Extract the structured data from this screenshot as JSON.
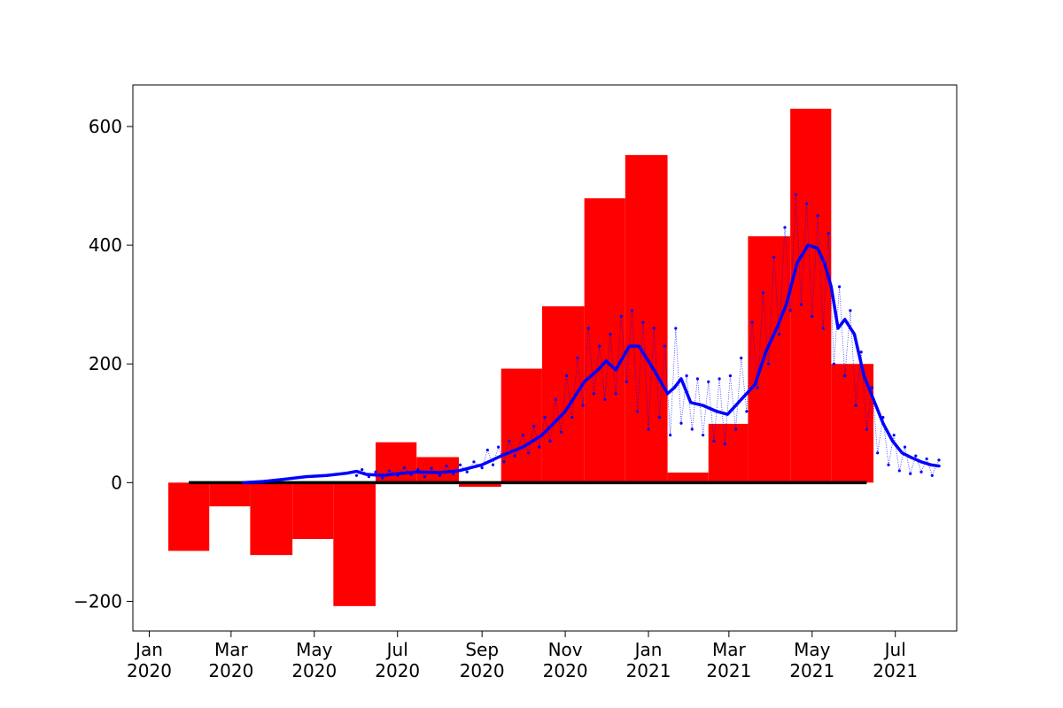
{
  "chart_data": {
    "type": "bar",
    "title": "",
    "xlabel": "",
    "ylabel": "",
    "xlim": [
      "2019-12-20",
      "2021-08-15"
    ],
    "ylim": [
      -250,
      670
    ],
    "grid": false,
    "x_ticks": [
      {
        "date": "2020-01-01",
        "label": [
          "Jan",
          "2020"
        ]
      },
      {
        "date": "2020-03-01",
        "label": [
          "Mar",
          "2020"
        ]
      },
      {
        "date": "2020-05-01",
        "label": [
          "May",
          "2020"
        ]
      },
      {
        "date": "2020-07-01",
        "label": [
          "Jul",
          "2020"
        ]
      },
      {
        "date": "2020-09-01",
        "label": [
          "Sep",
          "2020"
        ]
      },
      {
        "date": "2020-11-01",
        "label": [
          "Nov",
          "2020"
        ]
      },
      {
        "date": "2021-01-01",
        "label": [
          "Jan",
          "2021"
        ]
      },
      {
        "date": "2021-03-01",
        "label": [
          "Mar",
          "2021"
        ]
      },
      {
        "date": "2021-05-01",
        "label": [
          "May",
          "2021"
        ]
      },
      {
        "date": "2021-07-01",
        "label": [
          "Jul",
          "2021"
        ]
      }
    ],
    "y_ticks": [
      {
        "value": -200,
        "label": "−200"
      },
      {
        "value": 0,
        "label": "0"
      },
      {
        "value": 200,
        "label": "200"
      },
      {
        "value": 400,
        "label": "400"
      },
      {
        "value": 600,
        "label": "600"
      }
    ],
    "monthly_bars": {
      "color": "#ff0000",
      "bars": [
        {
          "start": "2020-01-15",
          "end": "2020-02-14",
          "value": -115
        },
        {
          "start": "2020-02-14",
          "end": "2020-03-15",
          "value": -40
        },
        {
          "start": "2020-03-15",
          "end": "2020-04-15",
          "value": -122
        },
        {
          "start": "2020-04-15",
          "end": "2020-05-15",
          "value": -95
        },
        {
          "start": "2020-05-15",
          "end": "2020-06-15",
          "value": -208
        },
        {
          "start": "2020-06-15",
          "end": "2020-07-15",
          "value": 68
        },
        {
          "start": "2020-07-15",
          "end": "2020-08-15",
          "value": 43
        },
        {
          "start": "2020-08-15",
          "end": "2020-09-15",
          "value": -7
        },
        {
          "start": "2020-09-15",
          "end": "2020-10-15",
          "value": 192
        },
        {
          "start": "2020-10-15",
          "end": "2020-11-15",
          "value": 297
        },
        {
          "start": "2020-11-15",
          "end": "2020-12-15",
          "value": 479
        },
        {
          "start": "2020-12-15",
          "end": "2021-01-15",
          "value": 552
        },
        {
          "start": "2021-01-15",
          "end": "2021-02-14",
          "value": 17
        },
        {
          "start": "2021-02-14",
          "end": "2021-03-15",
          "value": 99
        },
        {
          "start": "2021-03-15",
          "end": "2021-04-15",
          "value": 415
        },
        {
          "start": "2021-04-15",
          "end": "2021-05-15",
          "value": 630
        },
        {
          "start": "2021-05-15",
          "end": "2021-06-15",
          "value": 200
        }
      ]
    },
    "baseline": {
      "start": "2020-01-30",
      "end": "2021-06-10",
      "value": 0,
      "color": "#000000"
    },
    "series": [
      {
        "style": "thick-line",
        "color": "#0000ff",
        "points": [
          [
            "2020-03-10",
            0
          ],
          [
            "2020-03-25",
            2
          ],
          [
            "2020-04-10",
            6
          ],
          [
            "2020-04-25",
            10
          ],
          [
            "2020-05-10",
            12
          ],
          [
            "2020-05-25",
            16
          ],
          [
            "2020-06-01",
            19
          ],
          [
            "2020-06-08",
            14
          ],
          [
            "2020-06-20",
            12
          ],
          [
            "2020-07-01",
            15
          ],
          [
            "2020-07-15",
            18
          ],
          [
            "2020-08-01",
            17
          ],
          [
            "2020-08-15",
            20
          ],
          [
            "2020-09-01",
            30
          ],
          [
            "2020-09-15",
            45
          ],
          [
            "2020-10-01",
            60
          ],
          [
            "2020-10-15",
            80
          ],
          [
            "2020-11-01",
            120
          ],
          [
            "2020-11-15",
            170
          ],
          [
            "2020-11-25",
            190
          ],
          [
            "2020-12-01",
            205
          ],
          [
            "2020-12-08",
            190
          ],
          [
            "2020-12-18",
            230
          ],
          [
            "2020-12-25",
            230
          ],
          [
            "2021-01-05",
            190
          ],
          [
            "2021-01-15",
            150
          ],
          [
            "2021-01-20",
            160
          ],
          [
            "2021-01-25",
            175
          ],
          [
            "2021-02-01",
            135
          ],
          [
            "2021-02-10",
            130
          ],
          [
            "2021-02-20",
            120
          ],
          [
            "2021-02-28",
            115
          ],
          [
            "2021-03-10",
            140
          ],
          [
            "2021-03-20",
            165
          ],
          [
            "2021-03-28",
            220
          ],
          [
            "2021-04-05",
            260
          ],
          [
            "2021-04-12",
            300
          ],
          [
            "2021-04-20",
            370
          ],
          [
            "2021-04-28",
            400
          ],
          [
            "2021-05-05",
            395
          ],
          [
            "2021-05-10",
            370
          ],
          [
            "2021-05-15",
            330
          ],
          [
            "2021-05-20",
            260
          ],
          [
            "2021-05-25",
            275
          ],
          [
            "2021-06-01",
            250
          ],
          [
            "2021-06-08",
            180
          ],
          [
            "2021-06-15",
            140
          ],
          [
            "2021-06-22",
            100
          ],
          [
            "2021-06-29",
            70
          ],
          [
            "2021-07-06",
            50
          ],
          [
            "2021-07-13",
            42
          ],
          [
            "2021-07-20",
            35
          ],
          [
            "2021-07-27",
            30
          ],
          [
            "2021-08-02",
            28
          ]
        ]
      },
      {
        "style": "dotted-daily",
        "color": "#0000ff",
        "points": [
          [
            "2020-06-01",
            12
          ],
          [
            "2020-06-05",
            22
          ],
          [
            "2020-06-10",
            10
          ],
          [
            "2020-06-15",
            18
          ],
          [
            "2020-06-20",
            8
          ],
          [
            "2020-06-25",
            20
          ],
          [
            "2020-07-01",
            12
          ],
          [
            "2020-07-06",
            25
          ],
          [
            "2020-07-11",
            14
          ],
          [
            "2020-07-16",
            22
          ],
          [
            "2020-07-21",
            10
          ],
          [
            "2020-07-26",
            24
          ],
          [
            "2020-08-01",
            12
          ],
          [
            "2020-08-06",
            28
          ],
          [
            "2020-08-11",
            15
          ],
          [
            "2020-08-16",
            30
          ],
          [
            "2020-08-21",
            18
          ],
          [
            "2020-08-26",
            35
          ],
          [
            "2020-09-01",
            25
          ],
          [
            "2020-09-05",
            55
          ],
          [
            "2020-09-09",
            30
          ],
          [
            "2020-09-13",
            60
          ],
          [
            "2020-09-17",
            35
          ],
          [
            "2020-09-21",
            70
          ],
          [
            "2020-09-25",
            45
          ],
          [
            "2020-10-01",
            80
          ],
          [
            "2020-10-05",
            50
          ],
          [
            "2020-10-09",
            95
          ],
          [
            "2020-10-13",
            60
          ],
          [
            "2020-10-17",
            110
          ],
          [
            "2020-10-21",
            70
          ],
          [
            "2020-10-25",
            140
          ],
          [
            "2020-10-29",
            85
          ],
          [
            "2020-11-02",
            180
          ],
          [
            "2020-11-06",
            110
          ],
          [
            "2020-11-10",
            210
          ],
          [
            "2020-11-14",
            130
          ],
          [
            "2020-11-18",
            260
          ],
          [
            "2020-11-22",
            150
          ],
          [
            "2020-11-26",
            230
          ],
          [
            "2020-11-30",
            140
          ],
          [
            "2020-12-04",
            250
          ],
          [
            "2020-12-08",
            150
          ],
          [
            "2020-12-12",
            280
          ],
          [
            "2020-12-16",
            170
          ],
          [
            "2020-12-20",
            290
          ],
          [
            "2020-12-24",
            120
          ],
          [
            "2020-12-28",
            270
          ],
          [
            "2021-01-01",
            90
          ],
          [
            "2021-01-05",
            260
          ],
          [
            "2021-01-09",
            110
          ],
          [
            "2021-01-13",
            230
          ],
          [
            "2021-01-17",
            80
          ],
          [
            "2021-01-21",
            260
          ],
          [
            "2021-01-25",
            100
          ],
          [
            "2021-01-29",
            180
          ],
          [
            "2021-02-02",
            90
          ],
          [
            "2021-02-06",
            175
          ],
          [
            "2021-02-10",
            80
          ],
          [
            "2021-02-14",
            170
          ],
          [
            "2021-02-18",
            70
          ],
          [
            "2021-02-22",
            175
          ],
          [
            "2021-02-26",
            65
          ],
          [
            "2021-03-02",
            180
          ],
          [
            "2021-03-06",
            90
          ],
          [
            "2021-03-10",
            210
          ],
          [
            "2021-03-14",
            120
          ],
          [
            "2021-03-18",
            270
          ],
          [
            "2021-03-22",
            160
          ],
          [
            "2021-03-26",
            320
          ],
          [
            "2021-03-30",
            200
          ],
          [
            "2021-04-03",
            380
          ],
          [
            "2021-04-07",
            250
          ],
          [
            "2021-04-11",
            430
          ],
          [
            "2021-04-15",
            290
          ],
          [
            "2021-04-19",
            485
          ],
          [
            "2021-04-23",
            300
          ],
          [
            "2021-04-27",
            470
          ],
          [
            "2021-05-01",
            280
          ],
          [
            "2021-05-05",
            450
          ],
          [
            "2021-05-09",
            260
          ],
          [
            "2021-05-13",
            420
          ],
          [
            "2021-05-17",
            200
          ],
          [
            "2021-05-21",
            330
          ],
          [
            "2021-05-25",
            180
          ],
          [
            "2021-05-29",
            290
          ],
          [
            "2021-06-02",
            130
          ],
          [
            "2021-06-06",
            220
          ],
          [
            "2021-06-10",
            90
          ],
          [
            "2021-06-14",
            160
          ],
          [
            "2021-06-18",
            50
          ],
          [
            "2021-06-22",
            110
          ],
          [
            "2021-06-26",
            30
          ],
          [
            "2021-06-30",
            80
          ],
          [
            "2021-07-04",
            20
          ],
          [
            "2021-07-08",
            60
          ],
          [
            "2021-07-12",
            15
          ],
          [
            "2021-07-16",
            45
          ],
          [
            "2021-07-20",
            18
          ],
          [
            "2021-07-24",
            40
          ],
          [
            "2021-07-28",
            12
          ],
          [
            "2021-08-02",
            38
          ]
        ]
      }
    ]
  }
}
